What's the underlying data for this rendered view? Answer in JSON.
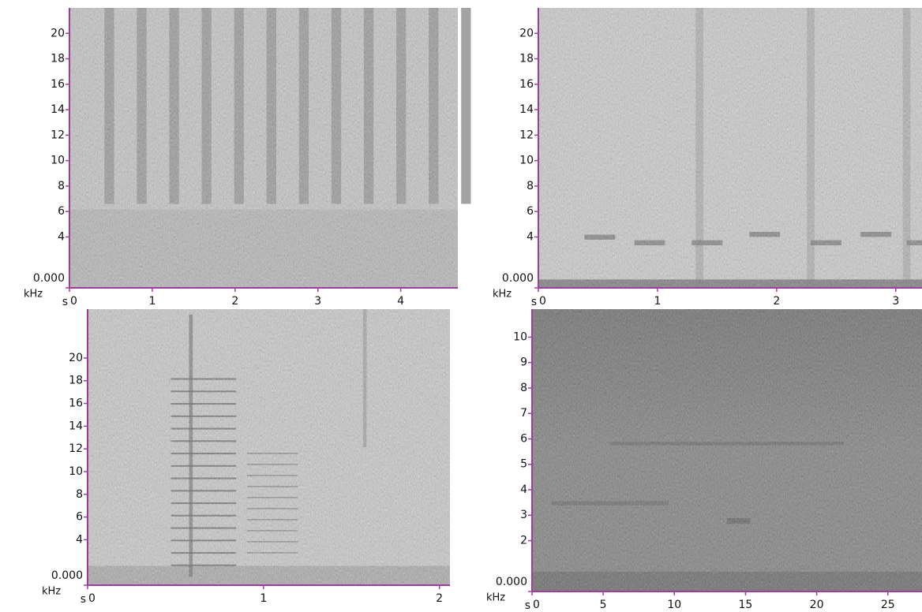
{
  "chart_data": [
    {
      "type": "spectrogram",
      "x_label": "s",
      "y_label": "kHz",
      "xlim": [
        0,
        4.69
      ],
      "ylim": [
        0,
        22
      ],
      "xticks": [
        0,
        1,
        2,
        3,
        4
      ],
      "yticks": [
        {
          "value": 0,
          "label": "0.000"
        },
        4,
        6,
        8,
        10,
        12,
        14,
        16,
        18,
        20
      ]
    },
    {
      "type": "spectrogram",
      "x_label": "s",
      "y_label": "kHz",
      "xlim": [
        0,
        3.22
      ],
      "ylim": [
        0,
        22
      ],
      "xticks": [
        0,
        1,
        2,
        3
      ],
      "yticks": [
        {
          "value": 0,
          "label": "0.000"
        },
        4,
        6,
        8,
        10,
        12,
        14,
        16,
        18,
        20
      ]
    },
    {
      "type": "spectrogram",
      "x_label": "s",
      "y_label": "kHz",
      "xlim": [
        0,
        2.06
      ],
      "ylim": [
        0,
        24.3
      ],
      "xticks": [
        0,
        1,
        2
      ],
      "yticks": [
        {
          "value": 0,
          "label": "0.000"
        },
        4,
        6,
        8,
        10,
        12,
        14,
        16,
        18,
        20
      ]
    },
    {
      "type": "spectrogram",
      "x_label": "s",
      "y_label": "kHz",
      "xlim": [
        0,
        27.4
      ],
      "ylim": [
        0,
        11.1
      ],
      "xticks": [
        0,
        5,
        10,
        15,
        20,
        25
      ],
      "yticks": [
        {
          "value": 0,
          "label": "0.000"
        },
        2,
        3,
        4,
        5,
        6,
        7,
        8,
        9,
        10
      ]
    }
  ]
}
